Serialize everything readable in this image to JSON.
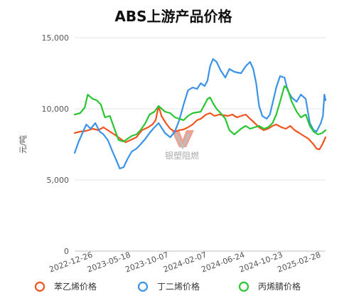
{
  "chart_data": {
    "type": "line",
    "title": "ABS上游产品价格",
    "ylabel": "元/吨",
    "xlabel": "",
    "ylim": [
      0,
      15000
    ],
    "y_ticks": [
      0,
      5000,
      10000,
      15000
    ],
    "y_tick_labels": [
      "0",
      "5,000",
      "10,000",
      "15,000"
    ],
    "x_range": [
      "2022-12-01",
      "2025-04-10"
    ],
    "x_tick_labels": [
      "2022-12-26",
      "2023-05-18",
      "2023-10-07",
      "2024-02-07",
      "2024-06-24",
      "2024-10-23",
      "2025-02-28"
    ],
    "grid": true,
    "legend_position": "bottom",
    "watermark": "银塑阻燃",
    "series": [
      {
        "name": "苯乙烯价格",
        "color": "#f0541e",
        "points": [
          [
            "2022-12-01",
            8300
          ],
          [
            "2022-12-20",
            8400
          ],
          [
            "2023-01-10",
            8450
          ],
          [
            "2023-02-01",
            8600
          ],
          [
            "2023-02-20",
            8500
          ],
          [
            "2023-03-10",
            8700
          ],
          [
            "2023-04-01",
            8400
          ],
          [
            "2023-04-20",
            8150
          ],
          [
            "2023-05-10",
            7850
          ],
          [
            "2023-05-25",
            7650
          ],
          [
            "2023-06-10",
            7800
          ],
          [
            "2023-07-01",
            8000
          ],
          [
            "2023-07-20",
            8500
          ],
          [
            "2023-08-10",
            8700
          ],
          [
            "2023-08-25",
            8900
          ],
          [
            "2023-09-05",
            9200
          ],
          [
            "2023-09-15",
            10200
          ],
          [
            "2023-09-25",
            9500
          ],
          [
            "2023-10-10",
            9000
          ],
          [
            "2023-10-25",
            8600
          ],
          [
            "2023-11-10",
            8400
          ],
          [
            "2023-11-25",
            8500
          ],
          [
            "2023-12-10",
            8550
          ],
          [
            "2023-12-25",
            8700
          ],
          [
            "2024-01-10",
            8900
          ],
          [
            "2024-01-25",
            9200
          ],
          [
            "2024-02-07",
            9300
          ],
          [
            "2024-02-25",
            9600
          ],
          [
            "2024-03-10",
            9700
          ],
          [
            "2024-03-25",
            9500
          ],
          [
            "2024-04-10",
            9600
          ],
          [
            "2024-04-25",
            9550
          ],
          [
            "2024-05-10",
            9500
          ],
          [
            "2024-05-25",
            9600
          ],
          [
            "2024-06-10",
            9400
          ],
          [
            "2024-06-24",
            9500
          ],
          [
            "2024-07-10",
            9600
          ],
          [
            "2024-07-25",
            9300
          ],
          [
            "2024-08-10",
            9000
          ],
          [
            "2024-08-25",
            8700
          ],
          [
            "2024-09-10",
            8500
          ],
          [
            "2024-09-25",
            8600
          ],
          [
            "2024-10-10",
            8800
          ],
          [
            "2024-10-23",
            8900
          ],
          [
            "2024-11-10",
            8700
          ],
          [
            "2024-11-25",
            8600
          ],
          [
            "2024-12-10",
            8800
          ],
          [
            "2024-12-25",
            8500
          ],
          [
            "2025-01-10",
            8300
          ],
          [
            "2025-01-25",
            8100
          ],
          [
            "2025-02-10",
            7900
          ],
          [
            "2025-02-28",
            7500
          ],
          [
            "2025-03-10",
            7200
          ],
          [
            "2025-03-20",
            7150
          ],
          [
            "2025-03-30",
            7500
          ],
          [
            "2025-04-10",
            8000
          ]
        ]
      },
      {
        "name": "丁二烯价格",
        "color": "#3b93e8",
        "points": [
          [
            "2022-12-01",
            6900
          ],
          [
            "2022-12-15",
            7700
          ],
          [
            "2022-12-26",
            8200
          ],
          [
            "2023-01-10",
            8900
          ],
          [
            "2023-01-25",
            8600
          ],
          [
            "2023-02-10",
            9000
          ],
          [
            "2023-02-25",
            8400
          ],
          [
            "2023-03-10",
            8200
          ],
          [
            "2023-03-25",
            7800
          ],
          [
            "2023-04-10",
            7000
          ],
          [
            "2023-04-25",
            6300
          ],
          [
            "2023-05-05",
            5800
          ],
          [
            "2023-05-18",
            5900
          ],
          [
            "2023-06-01",
            6500
          ],
          [
            "2023-06-15",
            7000
          ],
          [
            "2023-07-01",
            7200
          ],
          [
            "2023-07-15",
            7500
          ],
          [
            "2023-08-01",
            7900
          ],
          [
            "2023-08-15",
            8300
          ],
          [
            "2023-09-01",
            8700
          ],
          [
            "2023-09-15",
            9000
          ],
          [
            "2023-10-07",
            8300
          ],
          [
            "2023-10-25",
            8000
          ],
          [
            "2023-11-10",
            8400
          ],
          [
            "2023-11-25",
            9200
          ],
          [
            "2023-12-10",
            10300
          ],
          [
            "2023-12-25",
            11300
          ],
          [
            "2024-01-10",
            11500
          ],
          [
            "2024-01-25",
            11400
          ],
          [
            "2024-02-07",
            11800
          ],
          [
            "2024-02-20",
            11600
          ],
          [
            "2024-03-01",
            12000
          ],
          [
            "2024-03-10",
            13000
          ],
          [
            "2024-03-20",
            13500
          ],
          [
            "2024-04-01",
            13300
          ],
          [
            "2024-04-15",
            12700
          ],
          [
            "2024-05-01",
            12200
          ],
          [
            "2024-05-15",
            12800
          ],
          [
            "2024-06-01",
            12600
          ],
          [
            "2024-06-24",
            12500
          ],
          [
            "2024-07-10",
            13000
          ],
          [
            "2024-07-25",
            13300
          ],
          [
            "2024-08-05",
            12800
          ],
          [
            "2024-08-15",
            11800
          ],
          [
            "2024-08-25",
            10200
          ],
          [
            "2024-09-05",
            9500
          ],
          [
            "2024-09-20",
            9300
          ],
          [
            "2024-10-01",
            9600
          ],
          [
            "2024-10-23",
            11500
          ],
          [
            "2024-11-05",
            12300
          ],
          [
            "2024-11-20",
            12200
          ],
          [
            "2024-12-01",
            11300
          ],
          [
            "2024-12-15",
            10800
          ],
          [
            "2025-01-01",
            10500
          ],
          [
            "2025-01-15",
            11000
          ],
          [
            "2025-02-01",
            10700
          ],
          [
            "2025-02-15",
            9000
          ],
          [
            "2025-02-28",
            8500
          ],
          [
            "2025-03-10",
            8400
          ],
          [
            "2025-03-25",
            9000
          ],
          [
            "2025-04-01",
            9500
          ],
          [
            "2025-04-06",
            11000
          ],
          [
            "2025-04-10",
            10600
          ]
        ]
      },
      {
        "name": "丙烯腈价格",
        "color": "#29c633",
        "points": [
          [
            "2022-12-01",
            9600
          ],
          [
            "2022-12-20",
            9700
          ],
          [
            "2023-01-05",
            10100
          ],
          [
            "2023-01-15",
            11000
          ],
          [
            "2023-02-01",
            10700
          ],
          [
            "2023-02-15",
            10600
          ],
          [
            "2023-03-01",
            10300
          ],
          [
            "2023-03-15",
            9400
          ],
          [
            "2023-04-01",
            9500
          ],
          [
            "2023-04-15",
            8700
          ],
          [
            "2023-05-01",
            7800
          ],
          [
            "2023-05-18",
            7700
          ],
          [
            "2023-06-01",
            7900
          ],
          [
            "2023-06-15",
            8100
          ],
          [
            "2023-07-01",
            8200
          ],
          [
            "2023-07-15",
            8500
          ],
          [
            "2023-08-01",
            9000
          ],
          [
            "2023-08-15",
            9600
          ],
          [
            "2023-09-01",
            9800
          ],
          [
            "2023-09-15",
            10200
          ],
          [
            "2023-10-07",
            9800
          ],
          [
            "2023-10-25",
            9700
          ],
          [
            "2023-11-10",
            9400
          ],
          [
            "2023-11-25",
            9300
          ],
          [
            "2023-12-10",
            9200
          ],
          [
            "2023-12-25",
            9500
          ],
          [
            "2024-01-10",
            9700
          ],
          [
            "2024-02-07",
            9800
          ],
          [
            "2024-02-20",
            10300
          ],
          [
            "2024-03-01",
            10700
          ],
          [
            "2024-03-10",
            10800
          ],
          [
            "2024-03-20",
            10400
          ],
          [
            "2024-04-01",
            10000
          ],
          [
            "2024-04-15",
            9700
          ],
          [
            "2024-05-01",
            9300
          ],
          [
            "2024-05-15",
            8500
          ],
          [
            "2024-06-01",
            8200
          ],
          [
            "2024-06-24",
            8600
          ],
          [
            "2024-07-10",
            8800
          ],
          [
            "2024-07-25",
            8600
          ],
          [
            "2024-08-10",
            8700
          ],
          [
            "2024-08-25",
            8800
          ],
          [
            "2024-09-10",
            8600
          ],
          [
            "2024-09-25",
            8700
          ],
          [
            "2024-10-10",
            9000
          ],
          [
            "2024-10-23",
            9600
          ],
          [
            "2024-11-05",
            10500
          ],
          [
            "2024-11-20",
            11600
          ],
          [
            "2024-12-01",
            11400
          ],
          [
            "2024-12-15",
            10500
          ],
          [
            "2025-01-01",
            9800
          ],
          [
            "2025-01-15",
            9400
          ],
          [
            "2025-02-01",
            9600
          ],
          [
            "2025-02-15",
            8800
          ],
          [
            "2025-02-28",
            8400
          ],
          [
            "2025-03-15",
            8200
          ],
          [
            "2025-03-30",
            8300
          ],
          [
            "2025-04-10",
            8500
          ]
        ]
      }
    ]
  }
}
